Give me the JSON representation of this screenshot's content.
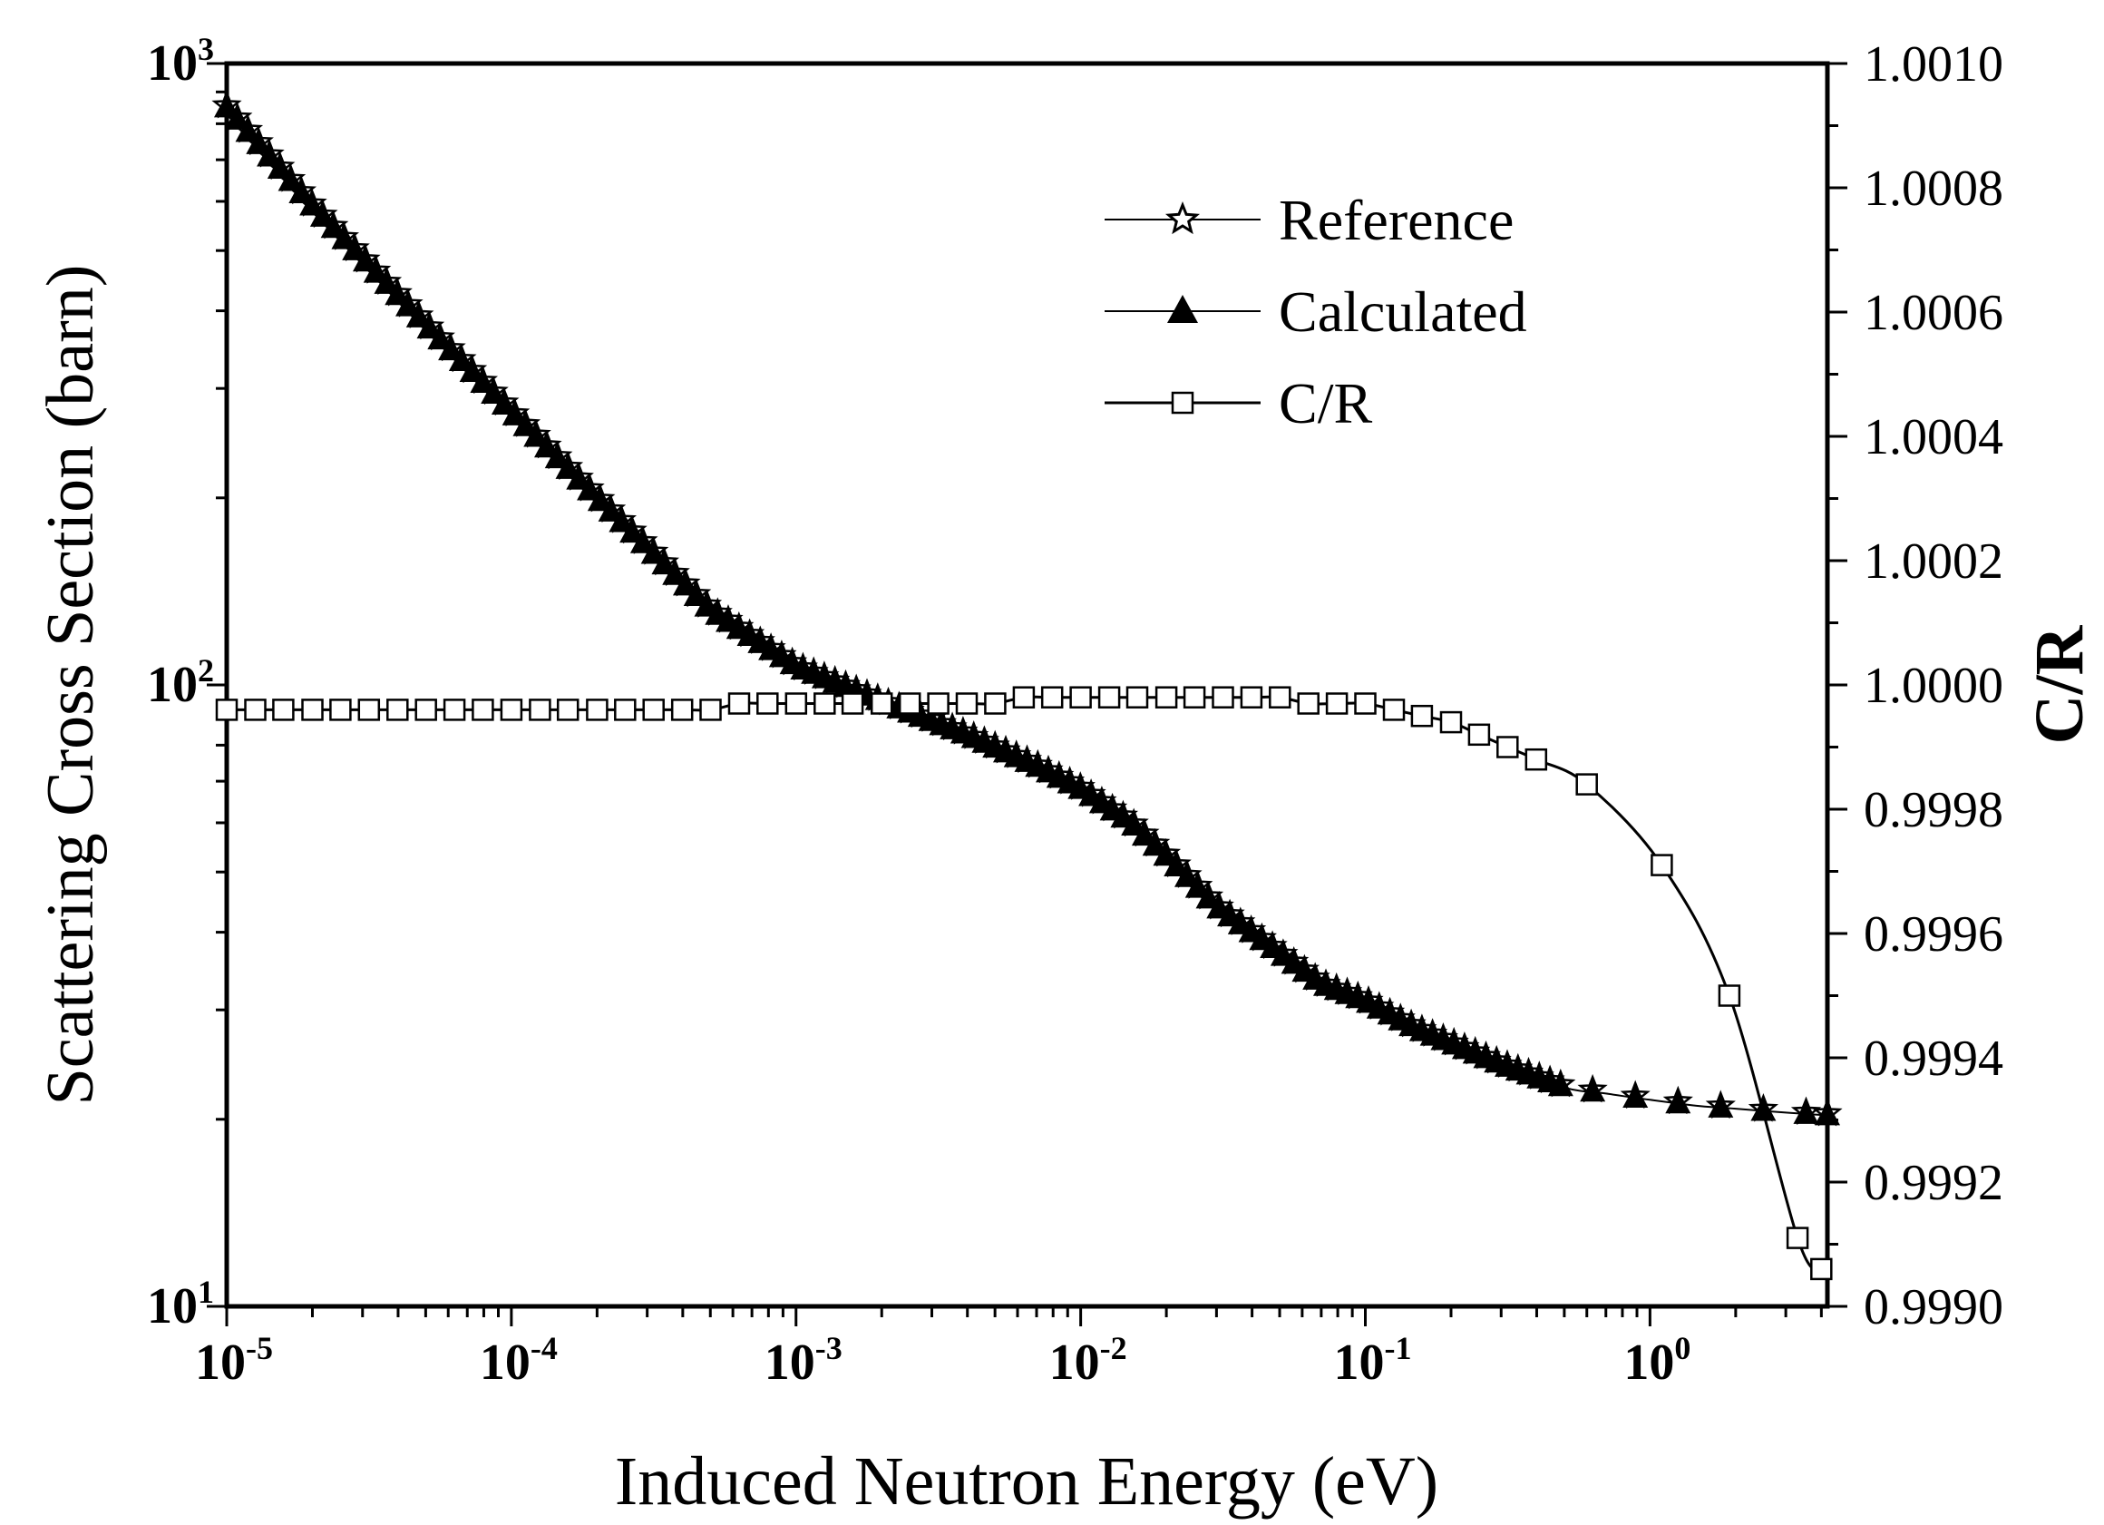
{
  "chart_data": {
    "type": "line",
    "xlabel": "Induced Neutron Energy (eV)",
    "ylabel": "Scattering Cross Section (barn)",
    "y2label": "C/R",
    "x_scale": "log",
    "y_scale": "log",
    "xlim": [
      1e-05,
      4.2
    ],
    "ylim": [
      10,
      1000
    ],
    "y2lim": [
      0.999,
      1.001
    ],
    "grid": false,
    "legend_position": "top-right",
    "x_ticks": [
      {
        "value": 1e-05,
        "base": "10",
        "exp": "-5"
      },
      {
        "value": 0.0001,
        "base": "10",
        "exp": "-4"
      },
      {
        "value": 0.001,
        "base": "10",
        "exp": "-3"
      },
      {
        "value": 0.01,
        "base": "10",
        "exp": "-2"
      },
      {
        "value": 0.1,
        "base": "10",
        "exp": "-1"
      },
      {
        "value": 1,
        "base": "10",
        "exp": "0"
      }
    ],
    "y_ticks": [
      {
        "value": 10,
        "base": "10",
        "exp": "1"
      },
      {
        "value": 100,
        "base": "10",
        "exp": "2"
      },
      {
        "value": 1000,
        "base": "10",
        "exp": "3"
      }
    ],
    "y2_ticks": [
      "0.9990",
      "0.9992",
      "0.9994",
      "0.9996",
      "0.9998",
      "1.0000",
      "1.0002",
      "1.0004",
      "1.0006",
      "1.0008",
      "1.0010"
    ],
    "series": [
      {
        "name": "Reference",
        "axis": "left",
        "marker": "star-open",
        "x": [
          1e-05,
          2e-05,
          5e-05,
          0.0001,
          0.0002,
          0.0005,
          0.001,
          0.002,
          0.004,
          0.007,
          0.01,
          0.015,
          0.02,
          0.03,
          0.05,
          0.07,
          0.1,
          0.15,
          0.2,
          0.3,
          0.5,
          0.7,
          1.0,
          1.5,
          2.0,
          3.0,
          4.2
        ],
        "values": [
          850,
          590,
          380,
          275,
          200,
          132,
          107,
          94,
          83,
          74,
          68,
          60,
          53,
          44,
          37,
          33,
          31,
          28,
          26.5,
          24.5,
          22.5,
          22,
          21.5,
          21,
          20.8,
          20.5,
          20.3
        ]
      },
      {
        "name": "Calculated",
        "axis": "left",
        "marker": "triangle-filled",
        "x": [
          1e-05,
          2e-05,
          5e-05,
          0.0001,
          0.0002,
          0.0005,
          0.001,
          0.002,
          0.004,
          0.007,
          0.01,
          0.015,
          0.02,
          0.03,
          0.05,
          0.07,
          0.1,
          0.15,
          0.2,
          0.3,
          0.5,
          0.7,
          1.0,
          1.5,
          2.0,
          3.0,
          4.2
        ],
        "values": [
          850,
          590,
          380,
          275,
          200,
          132,
          107,
          94,
          83,
          74,
          68,
          60,
          53,
          44,
          37,
          33,
          31,
          28,
          26.5,
          24.5,
          22.5,
          22,
          21.5,
          21,
          20.8,
          20.5,
          20.3
        ]
      },
      {
        "name": "C/R",
        "axis": "right",
        "marker": "square-open",
        "x": [
          1e-05,
          1.26e-05,
          1.58e-05,
          2e-05,
          2.51e-05,
          3.16e-05,
          3.98e-05,
          5.01e-05,
          6.31e-05,
          7.94e-05,
          0.0001,
          0.000126,
          0.000158,
          0.0002,
          0.000251,
          0.000316,
          0.000398,
          0.000501,
          0.000631,
          0.000794,
          0.001,
          0.00126,
          0.00158,
          0.002,
          0.00251,
          0.00316,
          0.00398,
          0.00501,
          0.00631,
          0.00794,
          0.01,
          0.0126,
          0.0158,
          0.02,
          0.0251,
          0.0316,
          0.0398,
          0.0501,
          0.0631,
          0.0794,
          0.1,
          0.126,
          0.158,
          0.2,
          0.251,
          0.316,
          0.398,
          0.6,
          1.1,
          1.9,
          3.3,
          4.0
        ],
        "values": [
          0.99996,
          0.99996,
          0.99996,
          0.99996,
          0.99996,
          0.99996,
          0.99996,
          0.99996,
          0.99996,
          0.99996,
          0.99996,
          0.99996,
          0.99996,
          0.99996,
          0.99996,
          0.99996,
          0.99996,
          0.99996,
          0.99997,
          0.99997,
          0.99997,
          0.99997,
          0.99997,
          0.99997,
          0.99997,
          0.99997,
          0.99997,
          0.99997,
          0.99998,
          0.99998,
          0.99998,
          0.99998,
          0.99998,
          0.99998,
          0.99998,
          0.99998,
          0.99998,
          0.99998,
          0.99997,
          0.99997,
          0.99997,
          0.99996,
          0.99995,
          0.99994,
          0.99992,
          0.9999,
          0.99988,
          0.99984,
          0.99971,
          0.9995,
          0.99911,
          0.99906
        ]
      }
    ]
  }
}
